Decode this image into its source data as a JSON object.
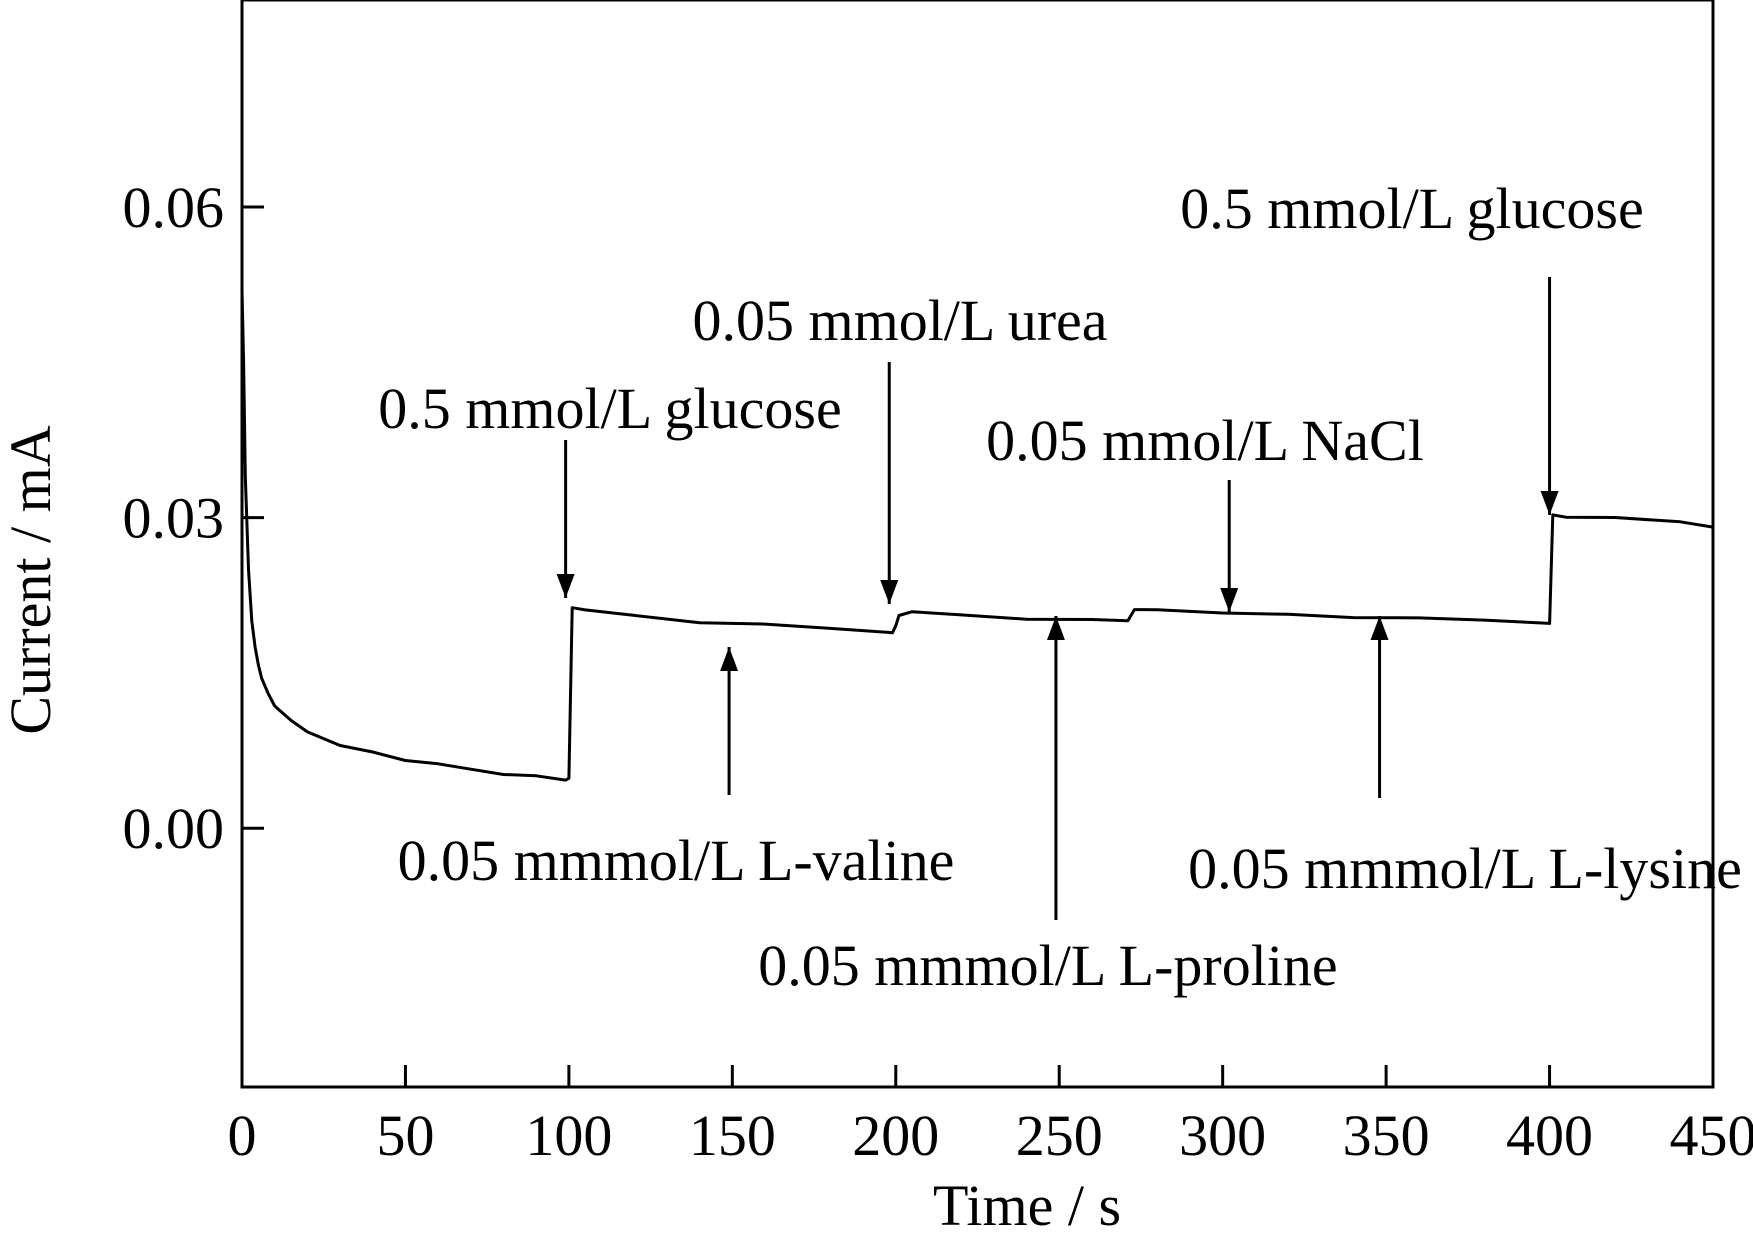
{
  "chart_data": {
    "type": "line",
    "title": "",
    "xlabel": "Time / s",
    "ylabel": "Current / mA",
    "xlim": [
      0,
      450
    ],
    "ylim": [
      -0.025,
      0.08
    ],
    "x_ticks": [
      0,
      50,
      100,
      150,
      200,
      250,
      300,
      350,
      400,
      450
    ],
    "y_ticks": [
      0.0,
      0.03,
      0.06
    ],
    "x_tick_labels": [
      "0",
      "50",
      "100",
      "150",
      "200",
      "250",
      "300",
      "350",
      "400",
      "450"
    ],
    "y_tick_labels": [
      "0.00",
      "0.03",
      "0.06"
    ],
    "grid": false,
    "series": [
      {
        "x": [
          0,
          0.5,
          1,
          2,
          3,
          4,
          5,
          6,
          8,
          10,
          15,
          20,
          30,
          40,
          50,
          60,
          70,
          80,
          90,
          99,
          100,
          101,
          105,
          120,
          140,
          160,
          180,
          199,
          200,
          201,
          205,
          220,
          240,
          260,
          271,
          273,
          280,
          300,
          320,
          340,
          360,
          380,
          400,
          401,
          405,
          420,
          440,
          450
        ],
        "y": [
          0.052,
          0.045,
          0.034,
          0.025,
          0.02,
          0.0175,
          0.0158,
          0.0145,
          0.013,
          0.0118,
          0.0103,
          0.0093,
          0.0081,
          0.0073,
          0.0066,
          0.0061,
          0.0057,
          0.0053,
          0.005,
          0.0047,
          0.0047,
          0.0213,
          0.0212,
          0.0205,
          0.0199,
          0.0196,
          0.0193,
          0.019,
          0.0195,
          0.0206,
          0.0208,
          0.0206,
          0.0203,
          0.0201,
          0.0201,
          0.021,
          0.0211,
          0.0209,
          0.0206,
          0.0204,
          0.0202,
          0.0201,
          0.0199,
          0.0302,
          0.0301,
          0.0299,
          0.0296,
          0.0292
        ]
      }
    ],
    "annotations": [
      {
        "text": "0.5 mmol/L glucose",
        "x": 99,
        "direction": "down"
      },
      {
        "text": "0.05 mmmol/L L-valine",
        "x": 149,
        "direction": "up"
      },
      {
        "text": "0.05 mmol/L urea",
        "x": 198,
        "direction": "down"
      },
      {
        "text": "0.05 mmmol/L L-proline",
        "x": 249,
        "direction": "up"
      },
      {
        "text": "0.05 mmol/L NaCl",
        "x": 302,
        "direction": "down"
      },
      {
        "text": "0.05 mmmol/L L-lysine",
        "x": 348,
        "direction": "up"
      },
      {
        "text": "0.5 mmol/L glucose",
        "x": 400,
        "direction": "down"
      }
    ]
  }
}
